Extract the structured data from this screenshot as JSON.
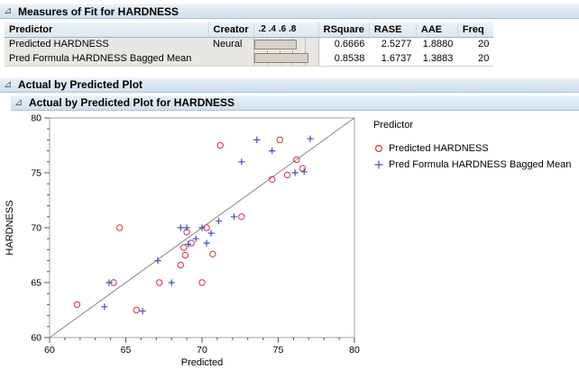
{
  "panels": {
    "measures_of_fit": {
      "title": "Measures of Fit for HARDNESS",
      "table": {
        "columns": [
          "Predictor",
          "Creator",
          ".2 .4 .6 .8",
          "RSquare",
          "RASE",
          "AAE",
          "Freq"
        ],
        "rows": [
          {
            "predictor": "Predicted HARDNESS",
            "creator": "Neural",
            "rsquare_bar": 0.6666,
            "rsquare": "0.6666",
            "rase": "2.5277",
            "aae": "1.8880",
            "freq": "20"
          },
          {
            "predictor": "Pred Formula HARDNESS Bagged Mean",
            "creator": "",
            "rsquare_bar": 0.8538,
            "rsquare": "0.8538",
            "rase": "1.6737",
            "aae": "1.3883",
            "freq": "20"
          }
        ]
      }
    },
    "actual_by_predicted": {
      "title": "Actual by Predicted Plot"
    },
    "actual_by_predicted_hardness": {
      "title": "Actual by Predicted Plot for HARDNESS"
    }
  },
  "chart_data": {
    "type": "scatter",
    "title": "Actual by Predicted Plot for HARDNESS",
    "xlabel": "Predicted",
    "ylabel": "HARDNESS",
    "xlim": [
      60,
      80
    ],
    "ylim": [
      60,
      80
    ],
    "x_ticks": [
      60,
      65,
      70,
      75,
      80
    ],
    "y_ticks": [
      60,
      65,
      70,
      75,
      80
    ],
    "minor_tick_step": 1,
    "grid": false,
    "identity_line": {
      "from": [
        60,
        60
      ],
      "to": [
        80,
        80
      ],
      "color": "#858585"
    },
    "frame_color": "#a3a3a3",
    "legend_position": "right",
    "legend_title": "Predictor",
    "series": [
      {
        "name": "Predicted HARDNESS",
        "marker": "circle",
        "color": "#d1343c",
        "points": [
          [
            61.8,
            63
          ],
          [
            64.2,
            65
          ],
          [
            64.6,
            70
          ],
          [
            65.7,
            62.5
          ],
          [
            67.2,
            65
          ],
          [
            70.0,
            65.0
          ],
          [
            68.6,
            66.6
          ],
          [
            68.8,
            68.2
          ],
          [
            68.9,
            67.5
          ],
          [
            69.0,
            69.6
          ],
          [
            69.3,
            68.6
          ],
          [
            70.3,
            70.0
          ],
          [
            70.7,
            67.6
          ],
          [
            71.2,
            77.5
          ],
          [
            72.6,
            71.0
          ],
          [
            74.6,
            74.4
          ],
          [
            75.1,
            78.0
          ],
          [
            75.6,
            74.8
          ],
          [
            76.2,
            76.2
          ],
          [
            76.6,
            75.4
          ]
        ]
      },
      {
        "name": "Pred Formula HARDNESS Bagged Mean",
        "marker": "plus",
        "color": "#3f52c0",
        "points": [
          [
            63.6,
            62.8
          ],
          [
            63.9,
            65.0
          ],
          [
            66.1,
            62.4
          ],
          [
            67.1,
            67.0
          ],
          [
            68.0,
            65.0
          ],
          [
            68.6,
            70.0
          ],
          [
            69.0,
            70.0
          ],
          [
            69.1,
            68.5
          ],
          [
            69.6,
            69.0
          ],
          [
            70.0,
            70.0
          ],
          [
            70.3,
            68.6
          ],
          [
            70.6,
            69.5
          ],
          [
            71.1,
            70.6
          ],
          [
            72.1,
            71.0
          ],
          [
            72.6,
            76.0
          ],
          [
            73.6,
            78.0
          ],
          [
            74.6,
            77.0
          ],
          [
            76.1,
            75.0
          ],
          [
            76.7,
            75.1
          ],
          [
            77.1,
            78.1
          ]
        ]
      }
    ]
  }
}
